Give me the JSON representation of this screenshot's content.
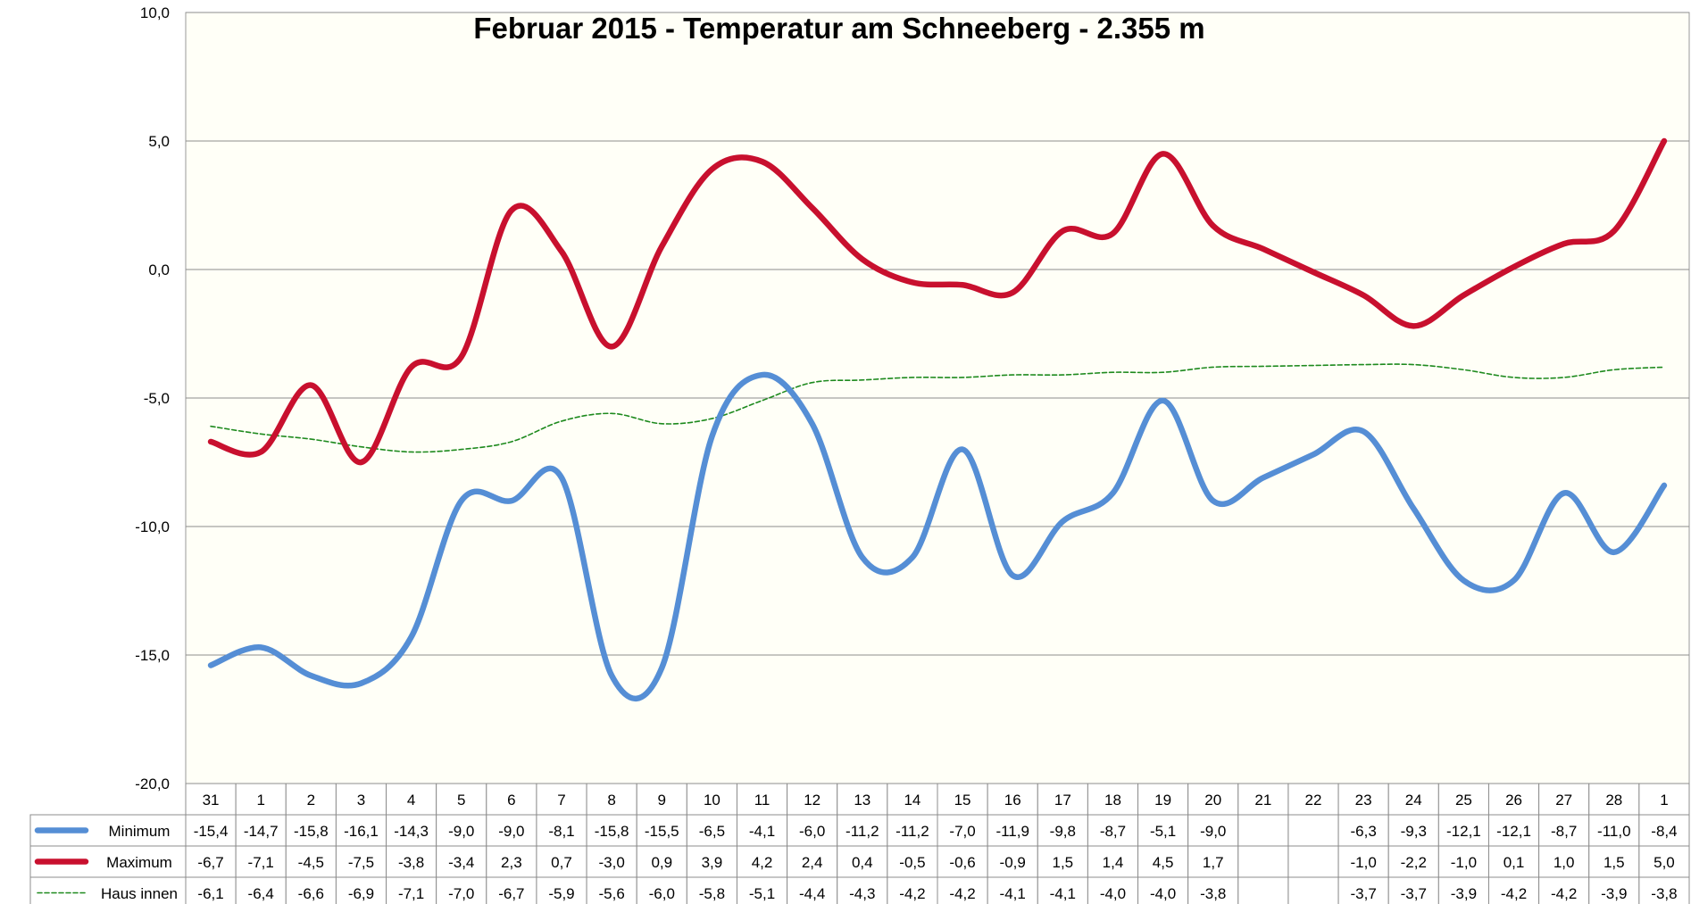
{
  "chart_data": {
    "type": "line",
    "title": "Februar 2015 - Temperatur am Schneeberg - 2.355 m",
    "xlabel": "",
    "ylabel": "",
    "ylim": [
      -20,
      10
    ],
    "y_ticks": [
      "10,0",
      "5,0",
      "0,0",
      "-5,0",
      "-10,0",
      "-15,0",
      "-20,0"
    ],
    "y_tick_values": [
      10,
      5,
      0,
      -5,
      -10,
      -15,
      -20
    ],
    "grid": true,
    "legend": "data-table-left",
    "categories": [
      "31",
      "1",
      "2",
      "3",
      "4",
      "5",
      "6",
      "7",
      "8",
      "9",
      "10",
      "11",
      "12",
      "13",
      "14",
      "15",
      "16",
      "17",
      "18",
      "19",
      "20",
      "21",
      "22",
      "23",
      "24",
      "25",
      "26",
      "27",
      "28",
      "1"
    ],
    "series": [
      {
        "name": "Minimum",
        "color": "#558ed5",
        "dash": false,
        "values": [
          -15.4,
          -14.7,
          -15.8,
          -16.1,
          -14.3,
          -9.0,
          -9.0,
          -8.1,
          -15.8,
          -15.5,
          -6.5,
          -4.1,
          -6.0,
          -11.2,
          -11.2,
          -7.0,
          -11.9,
          -9.8,
          -8.7,
          -5.1,
          -9.0,
          null,
          null,
          -6.3,
          -9.3,
          -12.1,
          -12.1,
          -8.7,
          -11.0,
          -8.4
        ],
        "labels": [
          "-15,4",
          "-14,7",
          "-15,8",
          "-16,1",
          "-14,3",
          "-9,0",
          "-9,0",
          "-8,1",
          "-15,8",
          "-15,5",
          "-6,5",
          "-4,1",
          "-6,0",
          "-11,2",
          "-11,2",
          "-7,0",
          "-11,9",
          "-9,8",
          "-8,7",
          "-5,1",
          "-9,0",
          "",
          "",
          "-6,3",
          "-9,3",
          "-12,1",
          "-12,1",
          "-8,7",
          "-11,0",
          "-8,4"
        ]
      },
      {
        "name": "Maximum",
        "color": "#c8102e",
        "dash": false,
        "values": [
          -6.7,
          -7.1,
          -4.5,
          -7.5,
          -3.8,
          -3.4,
          2.3,
          0.7,
          -3.0,
          0.9,
          3.9,
          4.2,
          2.4,
          0.4,
          -0.5,
          -0.6,
          -0.9,
          1.5,
          1.4,
          4.5,
          1.7,
          null,
          null,
          -1.0,
          -2.2,
          -1.0,
          0.1,
          1.0,
          1.5,
          5.0
        ],
        "labels": [
          "-6,7",
          "-7,1",
          "-4,5",
          "-7,5",
          "-3,8",
          "-3,4",
          "2,3",
          "0,7",
          "-3,0",
          "0,9",
          "3,9",
          "4,2",
          "2,4",
          "0,4",
          "-0,5",
          "-0,6",
          "-0,9",
          "1,5",
          "1,4",
          "4,5",
          "1,7",
          "",
          "",
          "-1,0",
          "-2,2",
          "-1,0",
          "0,1",
          "1,0",
          "1,5",
          "5,0"
        ]
      },
      {
        "name": "Haus innen",
        "color": "#1e8a1e",
        "dash": true,
        "values": [
          -6.1,
          -6.4,
          -6.6,
          -6.9,
          -7.1,
          -7.0,
          -6.7,
          -5.9,
          -5.6,
          -6.0,
          -5.8,
          -5.1,
          -4.4,
          -4.3,
          -4.2,
          -4.2,
          -4.1,
          -4.1,
          -4.0,
          -4.0,
          -3.8,
          null,
          null,
          -3.7,
          -3.7,
          -3.9,
          -4.2,
          -4.2,
          -3.9,
          -3.8
        ],
        "labels": [
          "-6,1",
          "-6,4",
          "-6,6",
          "-6,9",
          "-7,1",
          "-7,0",
          "-6,7",
          "-5,9",
          "-5,6",
          "-6,0",
          "-5,8",
          "-5,1",
          "-4,4",
          "-4,3",
          "-4,2",
          "-4,2",
          "-4,1",
          "-4,1",
          "-4,0",
          "-4,0",
          "-3,8",
          "",
          "",
          "-3,7",
          "-3,7",
          "-3,9",
          "-4,2",
          "-4,2",
          "-3,9",
          "-3,8"
        ]
      }
    ]
  }
}
